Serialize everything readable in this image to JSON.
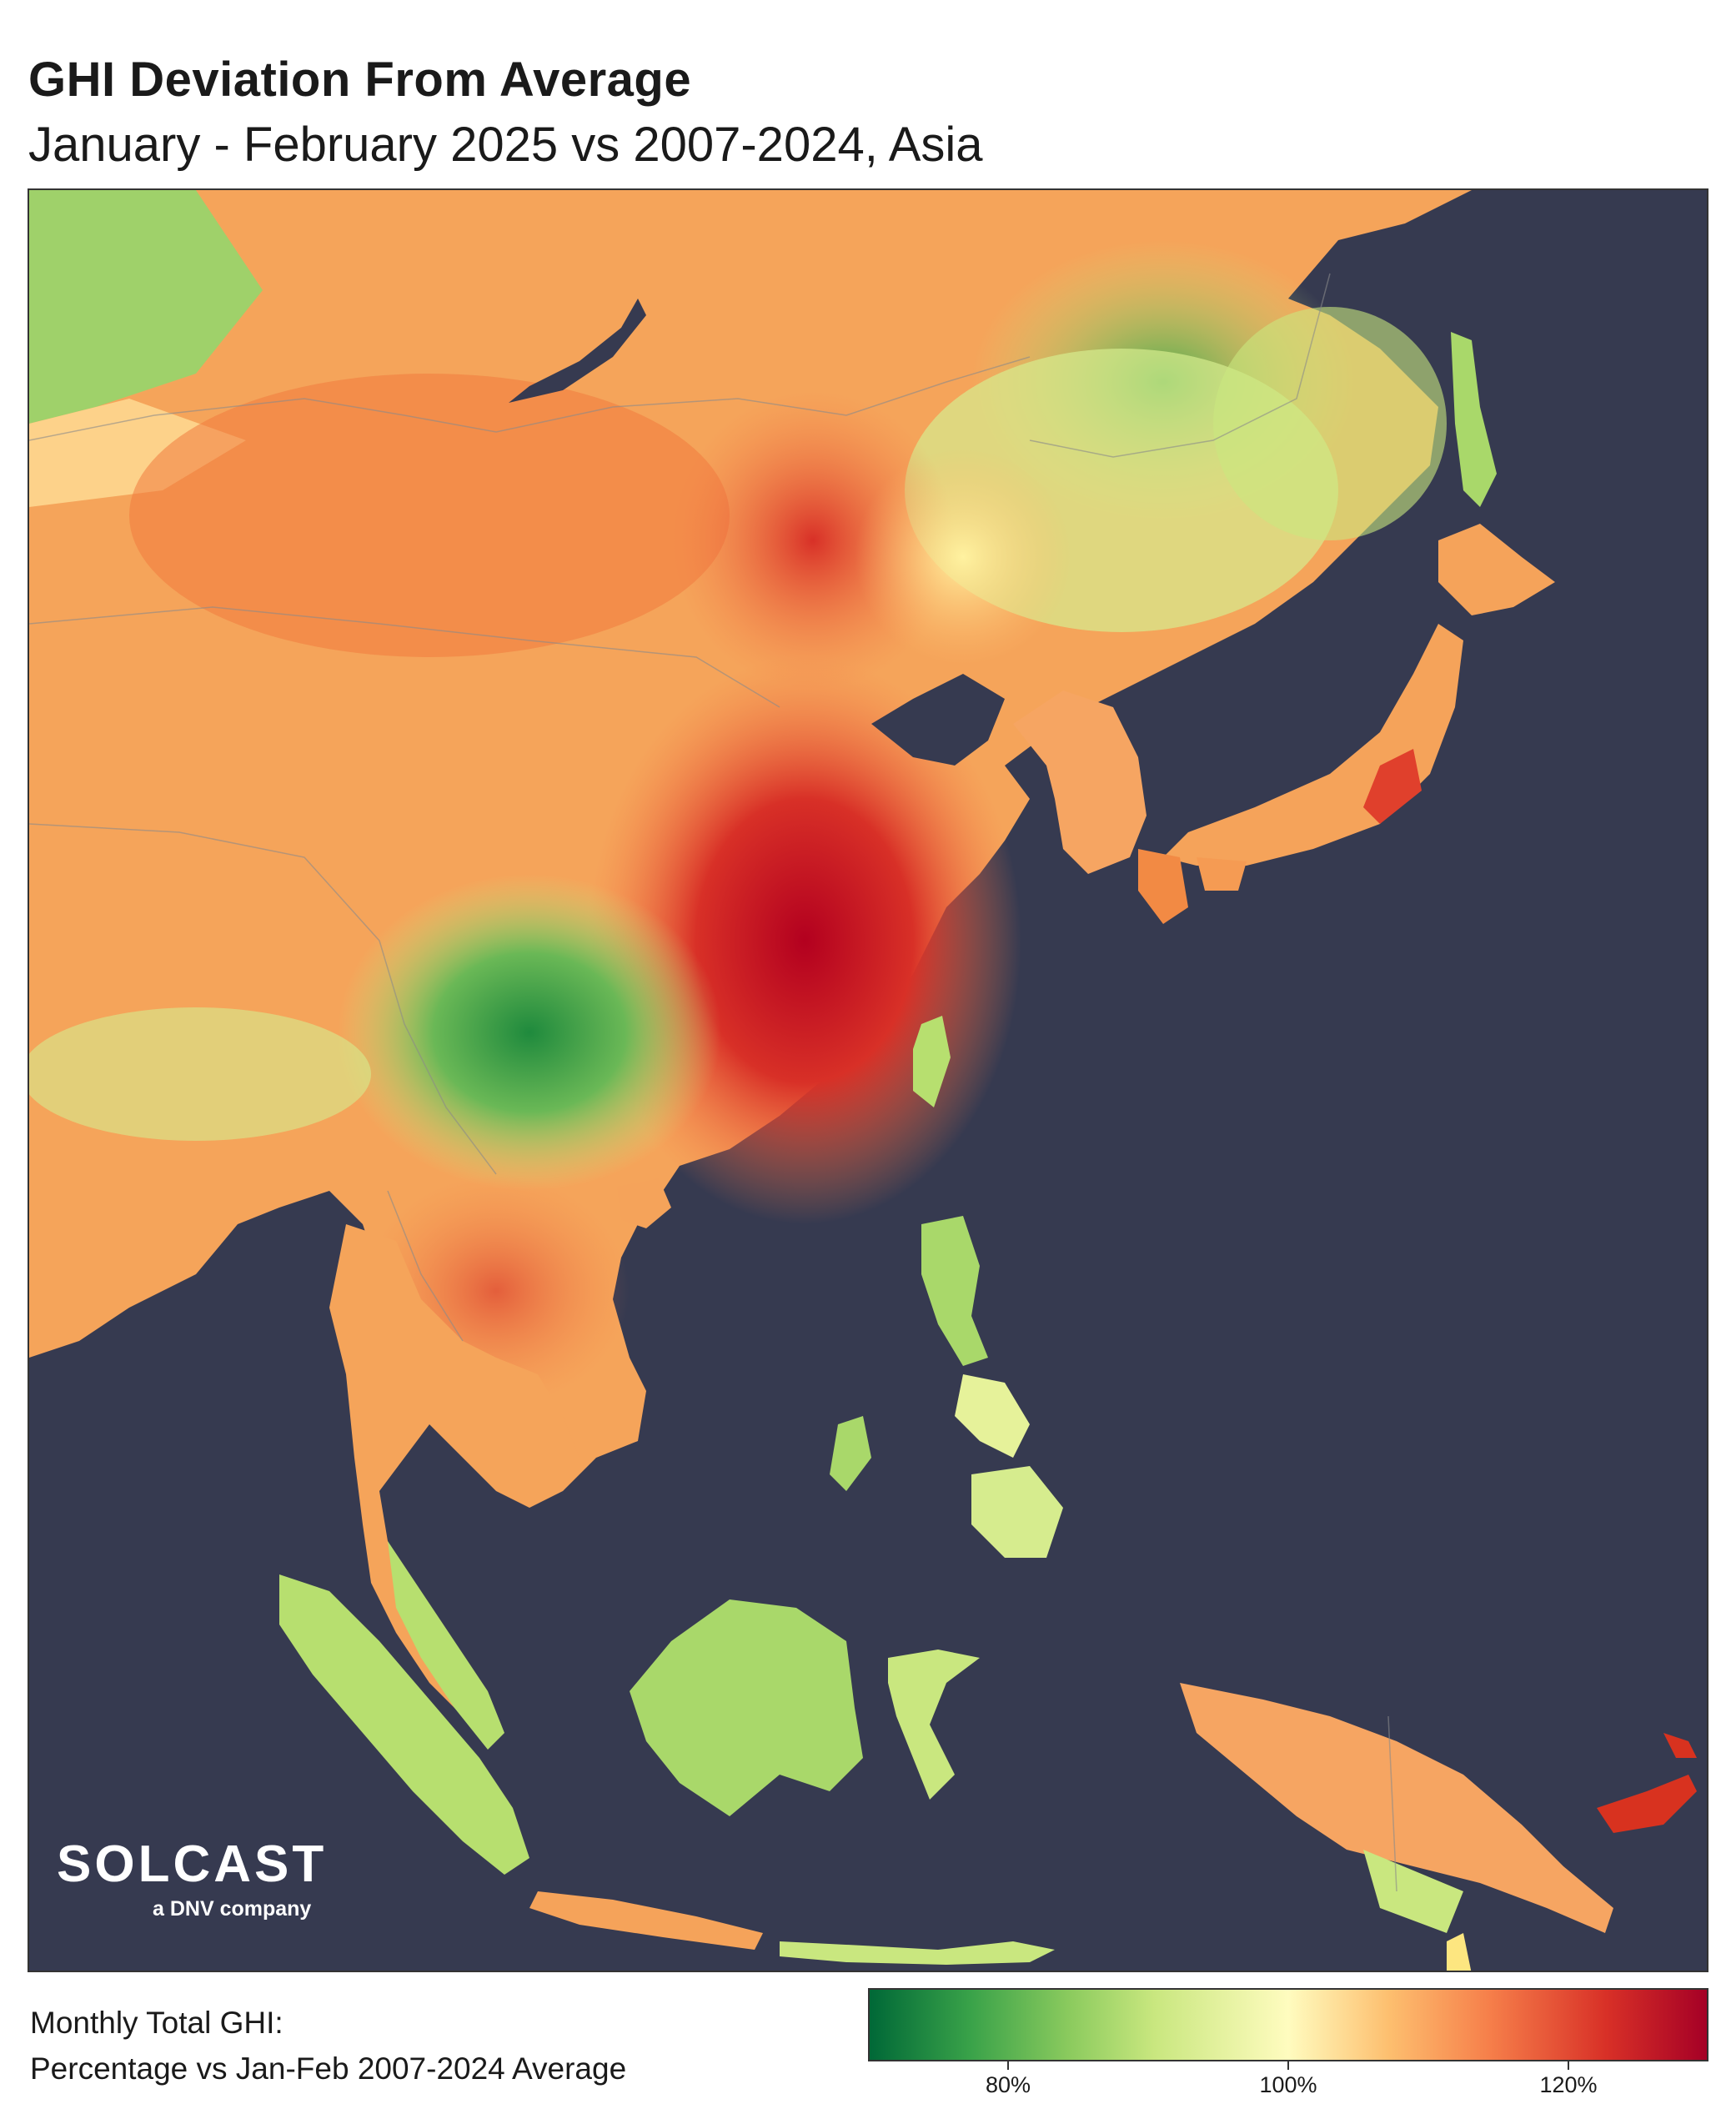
{
  "header": {
    "title": "GHI Deviation From Average",
    "subtitle": "January - February 2025 vs 2007-2024, Asia"
  },
  "branding": {
    "logo_text": "SOLCAST",
    "logo_tagline": "a DNV company"
  },
  "legend": {
    "label_line1": "Monthly Total GHI:",
    "label_line2": "Percentage vs Jan-Feb 2007-2024 Average",
    "ticks": [
      "80%",
      "100%",
      "120%"
    ],
    "scale": {
      "min_percent": 70,
      "max_percent": 130
    },
    "colors": {
      "low": "#006837",
      "neutral": "#fffcbf",
      "high": "#a50026"
    }
  },
  "map": {
    "ocean_color": "#363a50"
  }
}
